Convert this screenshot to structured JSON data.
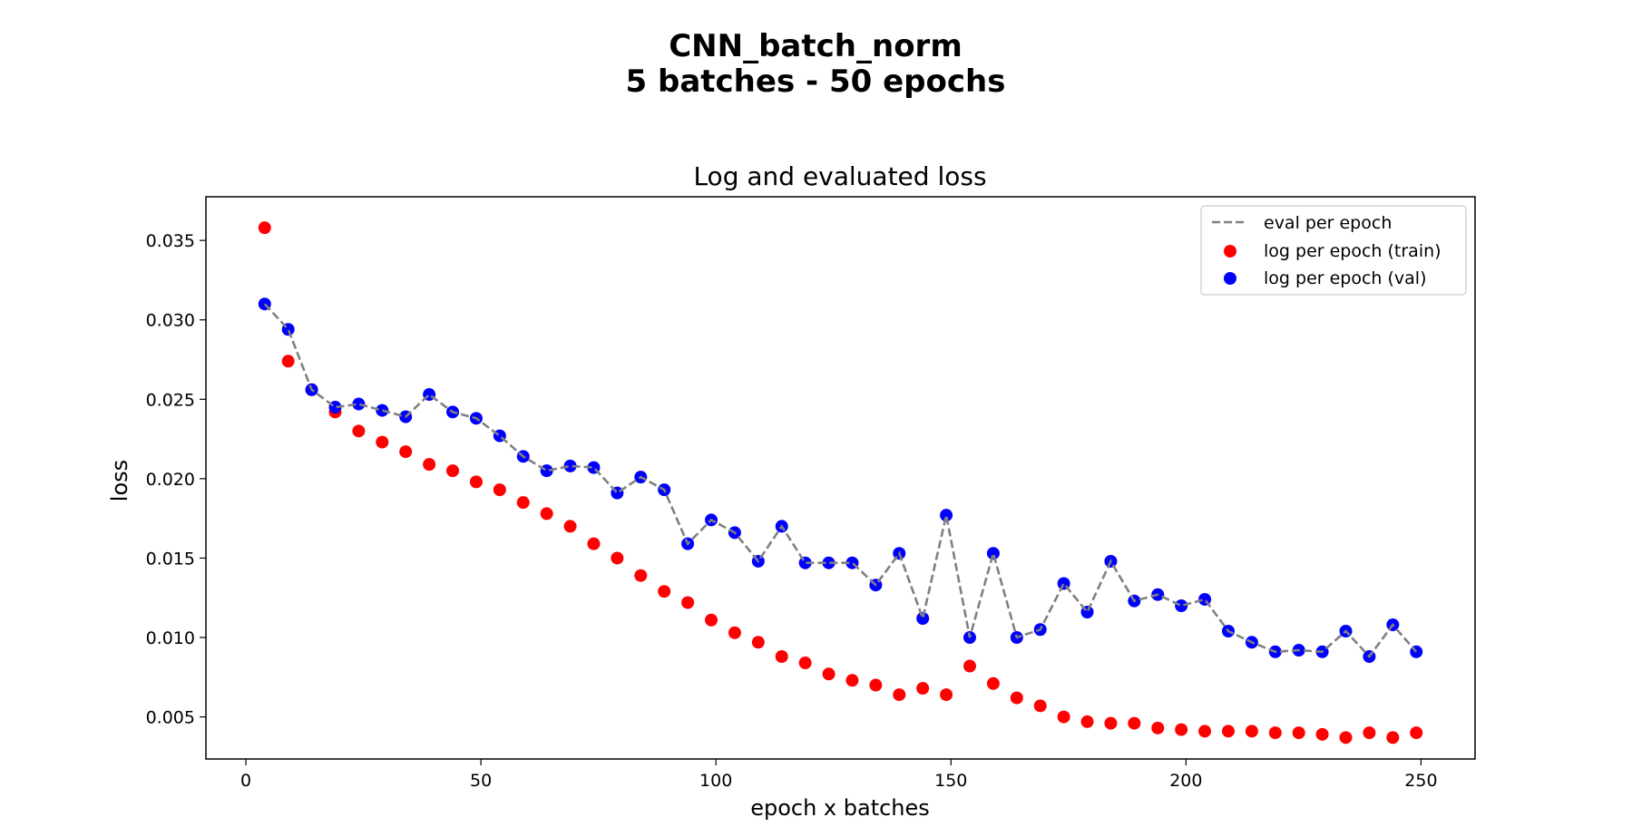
{
  "chart_data": {
    "type": "scatter",
    "suptitle_line1": "CNN_batch_norm",
    "suptitle_line2": "5 batches - 50 epochs",
    "title": "Log and evaluated loss",
    "xlabel": "epoch x batches",
    "ylabel": "loss",
    "xlim": [
      -8.5,
      261.5
    ],
    "ylim": [
      0.00235,
      0.03775
    ],
    "x_ticks": [
      0,
      50,
      100,
      150,
      200,
      250
    ],
    "y_ticks": [
      0.005,
      0.01,
      0.015,
      0.02,
      0.025,
      0.03,
      0.035
    ],
    "y_tick_labels": [
      "0.005",
      "0.010",
      "0.015",
      "0.020",
      "0.025",
      "0.030",
      "0.035"
    ],
    "grid": false,
    "legend_position": "upper right",
    "x": [
      4,
      9,
      14,
      19,
      24,
      29,
      34,
      39,
      44,
      49,
      54,
      59,
      64,
      69,
      74,
      79,
      84,
      89,
      94,
      99,
      104,
      109,
      114,
      119,
      124,
      129,
      134,
      139,
      144,
      149,
      154,
      159,
      164,
      169,
      174,
      179,
      184,
      189,
      194,
      199,
      204,
      209,
      214,
      219,
      224,
      229,
      234,
      239,
      244,
      249
    ],
    "series": [
      {
        "name": "eval per epoch",
        "kind": "dashed-line",
        "color": "#808080",
        "values": [
          0.031,
          0.0294,
          0.0256,
          0.0245,
          0.0247,
          0.0243,
          0.0239,
          0.0253,
          0.0242,
          0.0238,
          0.0227,
          0.0214,
          0.0205,
          0.0208,
          0.0207,
          0.0191,
          0.0201,
          0.0193,
          0.0159,
          0.0174,
          0.0166,
          0.0148,
          0.017,
          0.0147,
          0.0147,
          0.0147,
          0.0133,
          0.0153,
          0.0112,
          0.0177,
          0.01,
          0.0153,
          0.01,
          0.0105,
          0.0134,
          0.0116,
          0.0148,
          0.0123,
          0.0127,
          0.012,
          0.0124,
          0.0104,
          0.0097,
          0.0091,
          0.0092,
          0.0091,
          0.0104,
          0.0088,
          0.0108,
          0.0091
        ]
      },
      {
        "name": "log per epoch (train)",
        "kind": "points",
        "color": "#ff0000",
        "values": [
          0.0358,
          0.0274,
          0.0256,
          0.0242,
          0.023,
          0.0223,
          0.0217,
          0.0209,
          0.0205,
          0.0198,
          0.0193,
          0.0185,
          0.0178,
          0.017,
          0.0159,
          0.015,
          0.0139,
          0.0129,
          0.0122,
          0.0111,
          0.0103,
          0.0097,
          0.0088,
          0.0084,
          0.0077,
          0.0073,
          0.007,
          0.0064,
          0.0068,
          0.0064,
          0.0082,
          0.0071,
          0.0062,
          0.0057,
          0.005,
          0.0047,
          0.0046,
          0.0046,
          0.0043,
          0.0042,
          0.0041,
          0.0041,
          0.0041,
          0.004,
          0.004,
          0.0039,
          0.0037,
          0.004,
          0.0037,
          0.004
        ]
      },
      {
        "name": "log per epoch (val)",
        "kind": "points",
        "color": "#0000ff",
        "values": [
          0.031,
          0.0294,
          0.0256,
          0.0245,
          0.0247,
          0.0243,
          0.0239,
          0.0253,
          0.0242,
          0.0238,
          0.0227,
          0.0214,
          0.0205,
          0.0208,
          0.0207,
          0.0191,
          0.0201,
          0.0193,
          0.0159,
          0.0174,
          0.0166,
          0.0148,
          0.017,
          0.0147,
          0.0147,
          0.0147,
          0.0133,
          0.0153,
          0.0112,
          0.0177,
          0.01,
          0.0153,
          0.01,
          0.0105,
          0.0134,
          0.0116,
          0.0148,
          0.0123,
          0.0127,
          0.012,
          0.0124,
          0.0104,
          0.0097,
          0.0091,
          0.0092,
          0.0091,
          0.0104,
          0.0088,
          0.0108,
          0.0091
        ]
      }
    ]
  }
}
